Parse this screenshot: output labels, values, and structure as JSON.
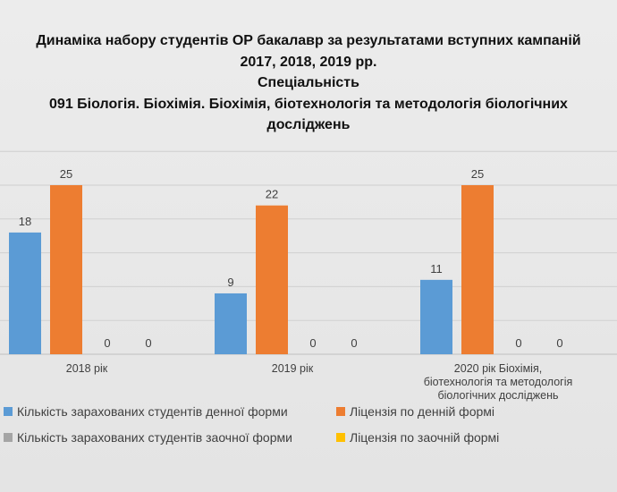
{
  "chart_data": {
    "type": "bar",
    "title": [
      "Динаміка набору студентів ОР бакалавр за результатами вступних кампаній",
      "2017, 2018, 2019 рр.",
      "Спеціальність",
      "091 Біологія. Біохімія. Біохімія, біотехнологія та методологія біологічних",
      "досліджень"
    ],
    "categories": [
      "2018 рік",
      "2019 рік",
      "2020 рік Біохімія, біотехнологія та методологія біологічних досліджень"
    ],
    "series": [
      {
        "name": "Кількість зарахованих студентів денної форми",
        "color": "#5b9bd5",
        "values": [
          18,
          9,
          11
        ]
      },
      {
        "name": "Ліцензія по денній формі",
        "color": "#ed7d31",
        "values": [
          25,
          22,
          25
        ]
      },
      {
        "name": "Кількість зарахованих студентів заочної форми",
        "color": "#a5a5a5",
        "values": [
          0,
          0,
          0
        ]
      },
      {
        "name": "Ліцензія по заочній формі",
        "color": "#ffc000",
        "values": [
          0,
          0,
          0
        ]
      }
    ],
    "ylim": [
      0,
      30
    ],
    "grid": true,
    "legend_position": "bottom"
  }
}
